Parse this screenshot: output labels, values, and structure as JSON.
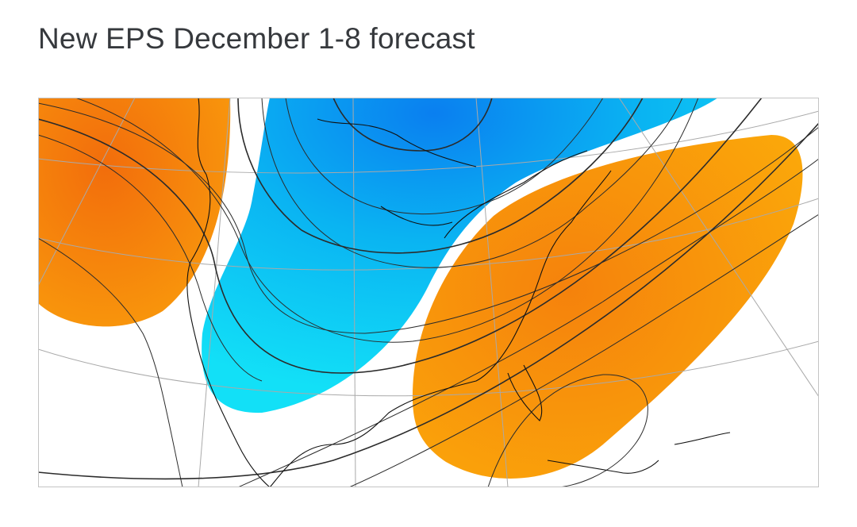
{
  "header": {
    "title": "New EPS December 1-8 forecast"
  }
}
